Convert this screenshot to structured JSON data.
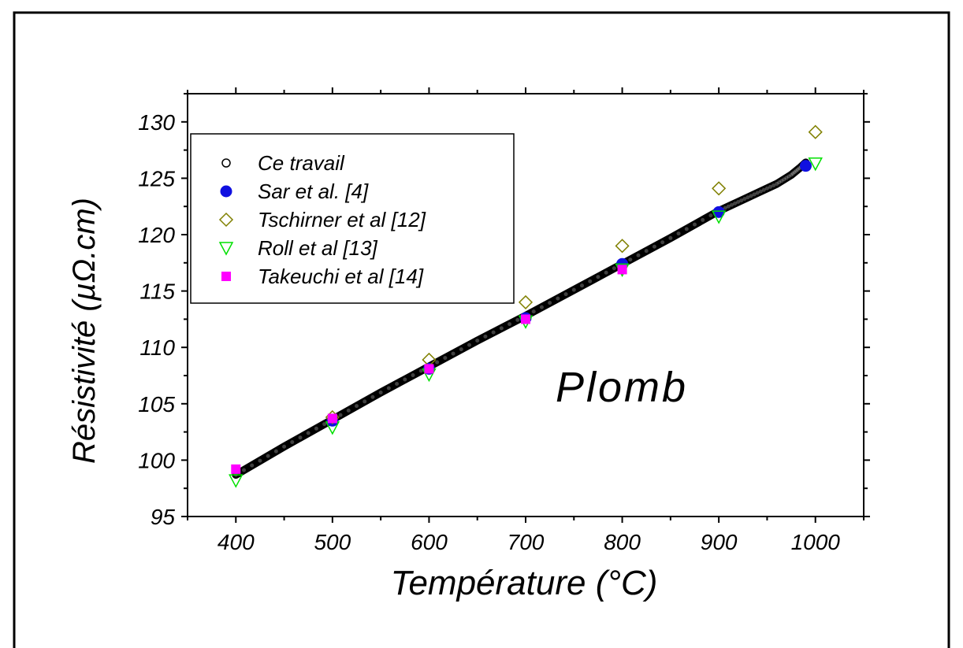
{
  "chart_data": {
    "type": "scatter",
    "xlabel": "Température (°C)",
    "ylabel": "Résistivité (µΩ.cm)",
    "annotation": "Plomb",
    "xlim": [
      350,
      1050
    ],
    "ylim": [
      95,
      132.5
    ],
    "xticks": [
      400,
      500,
      600,
      700,
      800,
      900,
      1000
    ],
    "yticks": [
      95,
      100,
      105,
      110,
      115,
      120,
      125,
      130
    ],
    "legend_position": "top-left",
    "grid": false,
    "series": [
      {
        "name": "Ce travail",
        "marker": "open-circle",
        "color": "#000000",
        "x": [
          400,
          450,
          500,
          550,
          600,
          650,
          700,
          750,
          800,
          850,
          900,
          920,
          940,
          960,
          975,
          985,
          990
        ],
        "y": [
          98.7,
          101.2,
          103.6,
          106.0,
          108.3,
          110.6,
          112.8,
          115.1,
          117.4,
          119.7,
          122.1,
          122.9,
          123.7,
          124.5,
          125.3,
          126.0,
          126.4
        ]
      },
      {
        "name": "Sar et al. [4]",
        "marker": "filled-circle",
        "color": "#1010e0",
        "x": [
          500,
          600,
          700,
          800,
          900,
          990
        ],
        "y": [
          103.5,
          108.1,
          112.6,
          117.4,
          122.0,
          126.1
        ]
      },
      {
        "name": "Tschirner et al [12]",
        "marker": "open-diamond",
        "color": "#808000",
        "x": [
          500,
          600,
          700,
          800,
          900,
          1000
        ],
        "y": [
          103.8,
          108.9,
          114.0,
          119.0,
          124.1,
          129.1
        ]
      },
      {
        "name": "Roll et al [13]",
        "marker": "open-triangle-down",
        "color": "#00e000",
        "x": [
          400,
          500,
          600,
          700,
          800,
          900,
          1000
        ],
        "y": [
          98.2,
          102.9,
          107.6,
          112.3,
          116.9,
          121.6,
          126.3
        ]
      },
      {
        "name": "Takeuchi et al [14]",
        "marker": "filled-square",
        "color": "#ff00ff",
        "x": [
          400,
          500,
          600,
          700,
          800
        ],
        "y": [
          99.2,
          103.7,
          108.1,
          112.5,
          116.9
        ]
      }
    ]
  }
}
